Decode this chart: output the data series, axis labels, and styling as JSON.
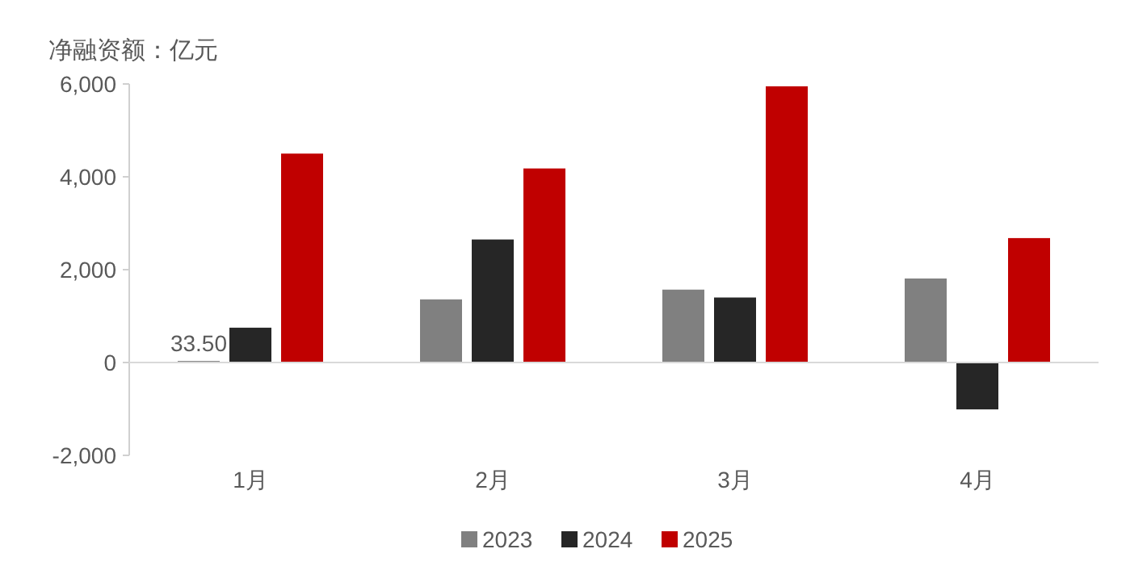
{
  "chart_data": {
    "type": "bar",
    "ylabel": "净融资额：亿元",
    "categories": [
      "1月",
      "2月",
      "3月",
      "4月"
    ],
    "series": [
      {
        "name": "2023",
        "color": "#808080",
        "values": [
          33.5,
          1360,
          1570,
          1810
        ],
        "value_labels": [
          "33.50",
          null,
          null,
          null
        ]
      },
      {
        "name": "2024",
        "color": "#262626",
        "values": [
          750,
          2650,
          1400,
          -1010
        ]
      },
      {
        "name": "2025",
        "color": "#c00000",
        "values": [
          4500,
          4180,
          5950,
          2680
        ]
      }
    ],
    "ylim": [
      -2000,
      6000
    ],
    "yticks": [
      {
        "value": -2000,
        "label": "-2,000"
      },
      0,
      {
        "value": 2000,
        "label": "2,000"
      },
      {
        "value": 4000,
        "label": "4,000"
      },
      {
        "value": 6000,
        "label": "6,000"
      }
    ],
    "legend": "bottom"
  }
}
